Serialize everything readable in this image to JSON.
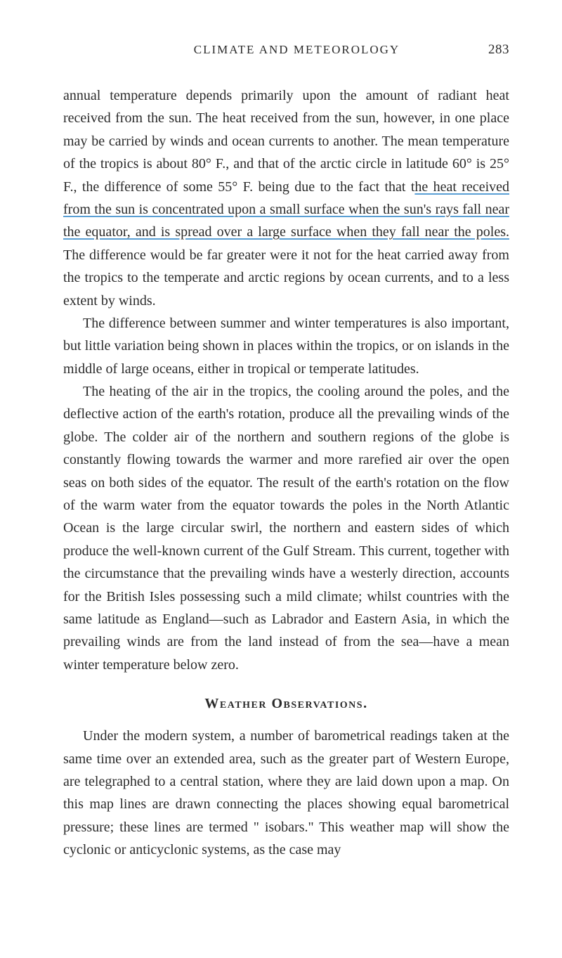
{
  "header": {
    "running_title": "CLIMATE AND METEOROLOGY",
    "page_number": "283"
  },
  "paragraphs": {
    "p1_pre": "annual temperature depends primarily upon the amount of radiant heat received from the sun. The heat received from the sun, however, in one place may be carried by winds and ocean currents to another. The mean temperature of the tropics is about 80° F., and that of the arctic circle in latitude 60° is 25° F., the difference of some 55° F. being due to the fact that t",
    "p1_underlined": "he heat received from the sun is concentrated upon a small surface when the sun's rays fall near the equator, and is spread over a large surface when they fall near the poles.",
    "p1_post": " The difference would be far greater were it not for the heat carried away from the tropics to the temperate and arctic regions by ocean currents, and to a less extent by winds.",
    "p2": "The difference between summer and winter temperatures is also important, but little variation being shown in places within the tropics, or on islands in the middle of large oceans, either in tropical or temperate latitudes.",
    "p3": "The heating of the air in the tropics, the cooling around the poles, and the deflective action of the earth's rotation, produce all the prevailing winds of the globe. The colder air of the northern and southern regions of the globe is constantly flowing towards the warmer and more rarefied air over the open seas on both sides of the equator. The result of the earth's rotation on the flow of the warm water from the equator towards the poles in the North Atlantic Ocean is the large circular swirl, the northern and eastern sides of which produce the well-known current of the Gulf Stream. This current, together with the circumstance that the prevailing winds have a westerly direction, accounts for the British Isles possessing such a mild climate; whilst countries with the same latitude as England—such as Labrador and Eastern Asia, in which the prevailing winds are from the land instead of from the sea—have a mean winter temperature below zero.",
    "section_heading": "Weather Observations.",
    "p4": "Under the modern system, a number of barometrical readings taken at the same time over an extended area, such as the greater part of Western Europe, are telegraphed to a central station, where they are laid down upon a map. On this map lines are drawn connecting the places showing equal barometrical pressure; these lines are termed \" isobars.\" This weather map will show the cyclonic or anticyclonic systems, as the case may"
  },
  "styles": {
    "background_color": "#ffffff",
    "text_color": "#2a2a2a",
    "underline_color": "#5a9fd4",
    "body_fontsize": 20,
    "header_fontsize": 17,
    "pagenum_fontsize": 19,
    "line_height": 1.62
  }
}
